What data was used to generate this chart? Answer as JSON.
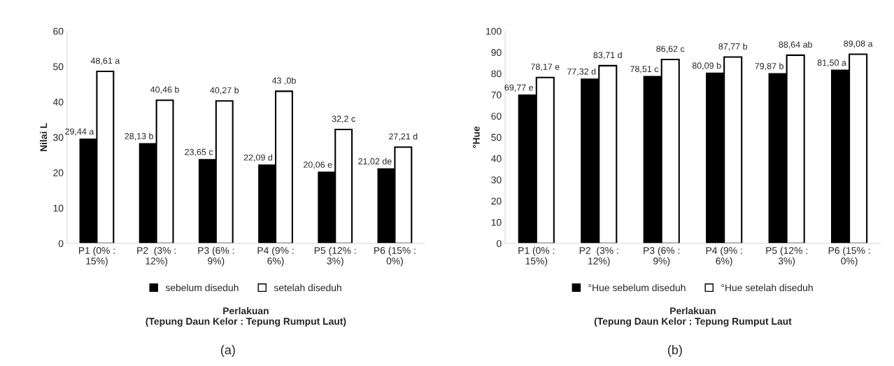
{
  "chart_data": [
    {
      "type": "bar",
      "ylabel": "Nilai L",
      "xlabel": "Perlakuan\n(Tepung Daun Kelor : Tepung Rumput Laut)",
      "categories": [
        "P1 (0% :\n15%)",
        "P2  (3% :\n12%)",
        "P3 (6% :\n9%)",
        "P4 (9% :\n6%)",
        "P5 (12% :\n3%)",
        "P6 (15% :\n0%)"
      ],
      "series": [
        {
          "name": "sebelum diseduh",
          "color": "#000000",
          "values": [
            29.44,
            28.13,
            23.65,
            22.09,
            20.06,
            21.02
          ],
          "value_labels": [
            "29,44 a",
            "28,13 b",
            "23,65 c",
            "22,09 d",
            "20,06 e",
            "21,02 de"
          ]
        },
        {
          "name": "setelah diseduh",
          "color": "#ffffff",
          "values": [
            48.61,
            40.46,
            40.27,
            43.0,
            32.2,
            27.21
          ],
          "value_labels": [
            "48,61 a",
            "40,46 b",
            "40,27 b",
            "43 ,0b",
            "32,2 c",
            "27,21 d"
          ]
        }
      ],
      "ylim": [
        0,
        60
      ],
      "yticks": [
        0,
        10,
        20,
        30,
        40,
        50,
        60
      ],
      "legend": "bottom",
      "grid": false,
      "annotations": [
        "(a)"
      ]
    },
    {
      "type": "bar",
      "ylabel": "°Hue",
      "xlabel": "Perlakuan\n(Tepung Daun Kelor : Tepung Rumput Laut",
      "categories": [
        "P1 (0% :\n15%)",
        "P2  (3% :\n12%)",
        "P3 (6% :\n9%)",
        "P4 (9% :\n6%)",
        "P5 (12% :\n3%)",
        "P6 (15% :\n0%)"
      ],
      "series": [
        {
          "name": "°Hue sebelum diseduh",
          "color": "#000000",
          "values": [
            69.77,
            77.32,
            78.51,
            80.09,
            79.87,
            81.5
          ],
          "value_labels": [
            "69,77 e",
            "77,32 d",
            "78,51 c",
            "80,09 b",
            "79,87 b",
            "81,50 a"
          ]
        },
        {
          "name": "°Hue setelah diseduh",
          "color": "#ffffff",
          "values": [
            78.17,
            83.71,
            86.62,
            87.77,
            88.64,
            89.08
          ],
          "value_labels": [
            "78,17 e",
            "83,71 d",
            "86,62 c",
            "87,77 b",
            "88,64 ab",
            "89,08 a"
          ]
        }
      ],
      "ylim": [
        0,
        100
      ],
      "yticks": [
        0,
        10,
        20,
        30,
        40,
        50,
        60,
        70,
        80,
        90,
        100
      ],
      "legend": "bottom",
      "grid": false,
      "annotations": [
        "(b)"
      ]
    }
  ]
}
